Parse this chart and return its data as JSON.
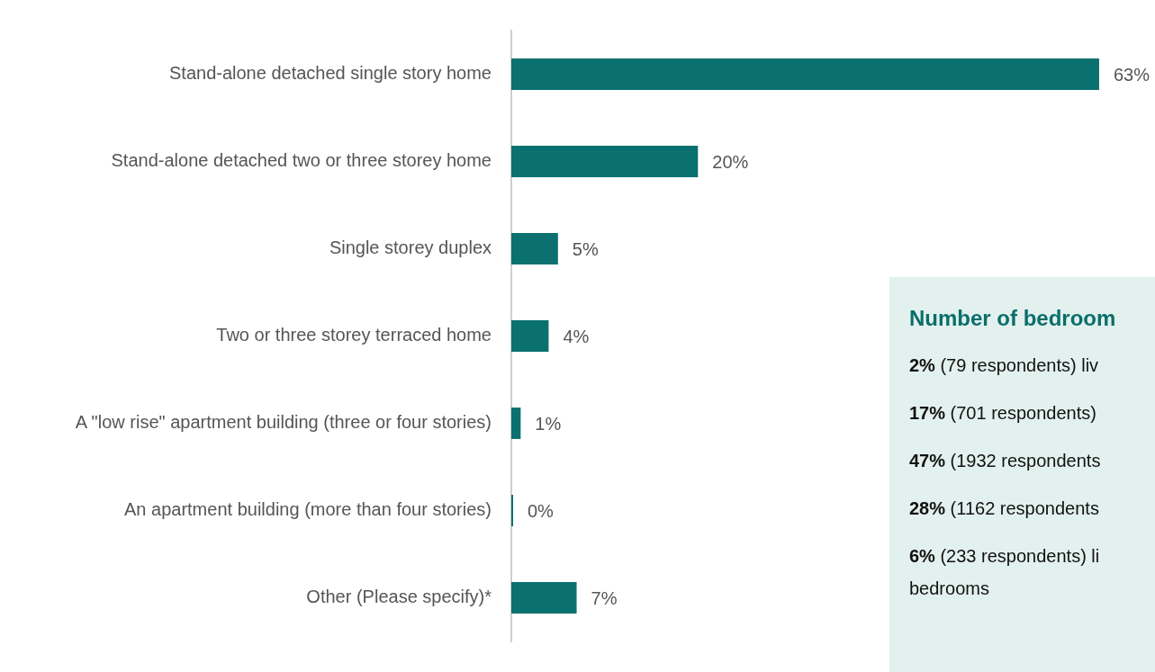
{
  "chart_data": {
    "type": "bar",
    "orientation": "horizontal",
    "categories": [
      "Stand-alone detached single story home",
      "Stand-alone detached two or three storey home",
      "Single storey duplex",
      "Two or three storey terraced home",
      "A \"low rise\" apartment building (three or four stories)",
      "An apartment building (more than four stories)",
      "Other (Please specify)*"
    ],
    "values": [
      63,
      20,
      5,
      4,
      1,
      0,
      7
    ],
    "value_labels": [
      "63%",
      "20%",
      "5%",
      "4%",
      "1%",
      "0%",
      "7%"
    ],
    "color": "#0b7170",
    "annotations": [
      "Number of bedroom",
      "2% (79 respondents) liv",
      "17% (701 respondents)",
      "47% (1932 respondents",
      "28% (1162 respondents",
      "6% (233 respondents) li bedrooms"
    ]
  }
}
